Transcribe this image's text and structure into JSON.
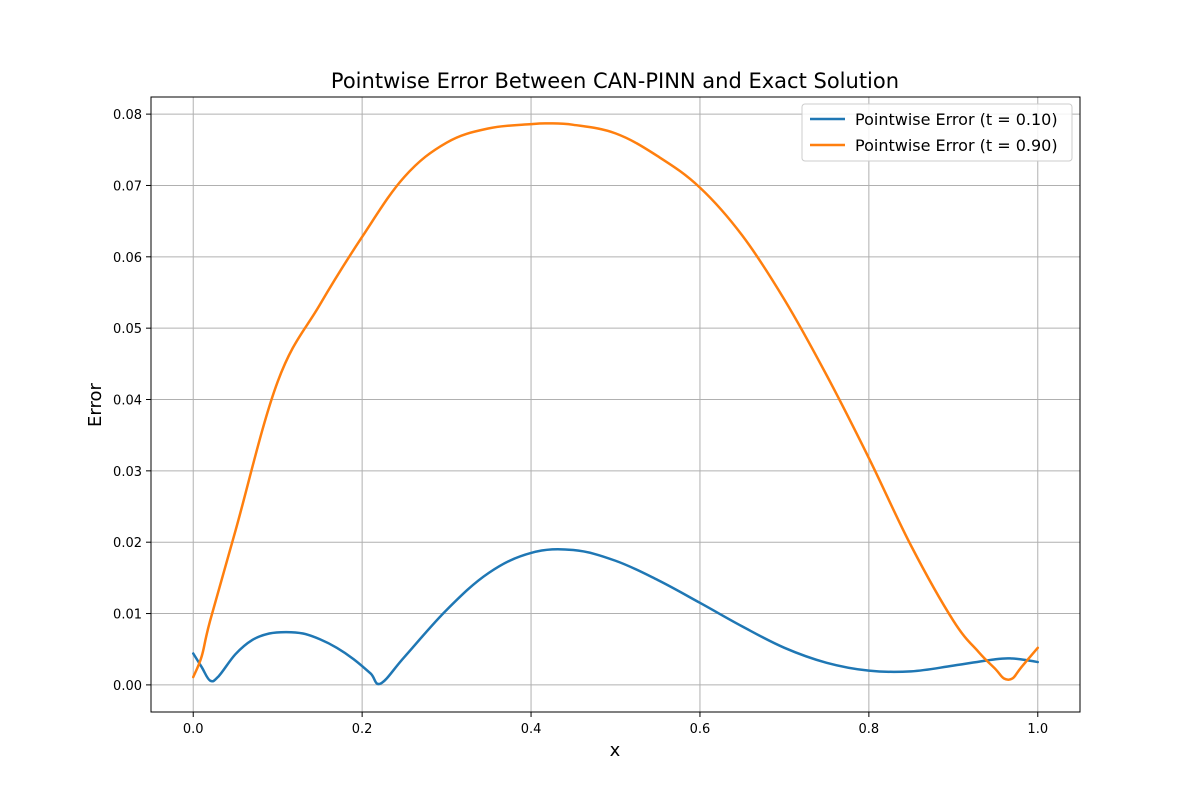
{
  "chart_data": {
    "type": "line",
    "title": "Pointwise Error Between CAN-PINN and Exact Solution",
    "xlabel": "x",
    "ylabel": "Error",
    "xlim": [
      -0.05,
      1.05
    ],
    "ylim": [
      -0.0038,
      0.0824
    ],
    "xticks": [
      0.0,
      0.2,
      0.4,
      0.6,
      0.8,
      1.0
    ],
    "xtick_labels": [
      "0.0",
      "0.2",
      "0.4",
      "0.6",
      "0.8",
      "1.0"
    ],
    "yticks": [
      0.0,
      0.01,
      0.02,
      0.03,
      0.04,
      0.05,
      0.06,
      0.07,
      0.08
    ],
    "ytick_labels": [
      "0.00",
      "0.01",
      "0.02",
      "0.03",
      "0.04",
      "0.05",
      "0.06",
      "0.07",
      "0.08"
    ],
    "grid": true,
    "legend_position": "top-right",
    "series": [
      {
        "name": "Pointwise Error (t = 0.10)",
        "color": "#1f77b4",
        "x": [
          0.0,
          0.01,
          0.02,
          0.03,
          0.05,
          0.07,
          0.09,
          0.11,
          0.13,
          0.15,
          0.17,
          0.19,
          0.21,
          0.222,
          0.25,
          0.3,
          0.35,
          0.4,
          0.45,
          0.5,
          0.55,
          0.6,
          0.65,
          0.7,
          0.75,
          0.8,
          0.85,
          0.9,
          0.95,
          0.97,
          0.99,
          1.0
        ],
        "values": [
          0.0044,
          0.0025,
          0.0006,
          0.0012,
          0.0043,
          0.0063,
          0.0072,
          0.0074,
          0.0072,
          0.0064,
          0.0052,
          0.0036,
          0.0016,
          0.0002,
          0.0039,
          0.0105,
          0.0157,
          0.0185,
          0.0189,
          0.0174,
          0.0147,
          0.0115,
          0.0082,
          0.0052,
          0.0031,
          0.002,
          0.0019,
          0.0027,
          0.0036,
          0.0037,
          0.0034,
          0.0032
        ]
      },
      {
        "name": "Pointwise Error (t = 0.90)",
        "color": "#ff7f0e",
        "x": [
          0.0,
          0.01,
          0.02,
          0.05,
          0.1,
          0.15,
          0.2,
          0.25,
          0.3,
          0.35,
          0.4,
          0.42,
          0.45,
          0.5,
          0.55,
          0.6,
          0.65,
          0.7,
          0.75,
          0.8,
          0.85,
          0.9,
          0.93,
          0.95,
          0.96,
          0.97,
          0.98,
          1.0
        ],
        "values": [
          0.0011,
          0.004,
          0.009,
          0.0216,
          0.0425,
          0.0533,
          0.0628,
          0.0712,
          0.076,
          0.078,
          0.0786,
          0.0787,
          0.0785,
          0.0773,
          0.0741,
          0.0697,
          0.063,
          0.054,
          0.0434,
          0.0318,
          0.0195,
          0.009,
          0.0046,
          0.0022,
          0.0009,
          0.0009,
          0.0024,
          0.0052
        ]
      }
    ]
  }
}
